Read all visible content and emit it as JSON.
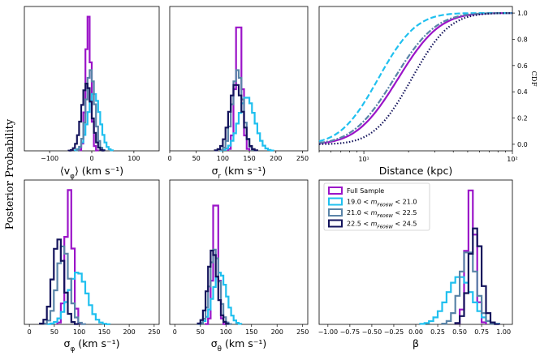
{
  "figure": {
    "y_label": "Posterior Probability",
    "colors": {
      "full": "#9b14c8",
      "s1": "#20c0ef",
      "s2": "#5a84a8",
      "s3": "#14145c"
    }
  },
  "legend": {
    "entries": [
      {
        "key": "full",
        "label": "Full Sample"
      },
      {
        "key": "s1",
        "label": "19.0 < m_F606W < 21.0"
      },
      {
        "key": "s2",
        "label": "21.0 < m_F606W < 22.5"
      },
      {
        "key": "s3",
        "label": "22.5 < m_F606W < 24.5"
      }
    ]
  },
  "chart_data": [
    {
      "id": "vphi",
      "type": "histogram",
      "xlabel": "⟨v_φ⟩ (km s⁻¹)",
      "xlim": [
        -160,
        160
      ],
      "xticks": [
        -100,
        0,
        100
      ],
      "xticklabels": [
        "−100",
        "0",
        "100"
      ],
      "bin_width": 5,
      "series": [
        {
          "key": "full",
          "center": -8,
          "sd": 6
        },
        {
          "key": "s1",
          "center": 5,
          "sd": 14
        },
        {
          "key": "s2",
          "center": -3,
          "sd": 10
        },
        {
          "key": "s3",
          "center": -12,
          "sd": 12
        }
      ]
    },
    {
      "id": "sigr",
      "type": "histogram",
      "xlabel": "σ_r (km s⁻¹)",
      "xlim": [
        0,
        260
      ],
      "xticks": [
        0,
        50,
        100,
        150,
        200,
        250
      ],
      "xticklabels": [
        "0",
        "50",
        "100",
        "150",
        "200",
        "250"
      ],
      "bin_width": 5,
      "series": [
        {
          "key": "full",
          "center": 130,
          "sd": 6
        },
        {
          "key": "s1",
          "center": 145,
          "sd": 15
        },
        {
          "key": "s2",
          "center": 128,
          "sd": 10
        },
        {
          "key": "s3",
          "center": 125,
          "sd": 12
        }
      ]
    },
    {
      "id": "sigphi",
      "type": "histogram",
      "xlabel": "σ_φ (km s⁻¹)",
      "xlim": [
        -10,
        260
      ],
      "xticks": [
        0,
        50,
        100,
        150,
        200,
        250
      ],
      "xticklabels": [
        "0",
        "50",
        "100",
        "150",
        "200",
        "250"
      ],
      "bin_width": 7,
      "series": [
        {
          "key": "full",
          "center": 80,
          "sd": 7
        },
        {
          "key": "s1",
          "center": 97,
          "sd": 18
        },
        {
          "key": "s2",
          "center": 68,
          "sd": 12
        },
        {
          "key": "s3",
          "center": 58,
          "sd": 11
        }
      ]
    },
    {
      "id": "sigtheta",
      "type": "histogram",
      "xlabel": "σ_θ (km s⁻¹)",
      "xlim": [
        -10,
        260
      ],
      "xticks": [
        0,
        50,
        100,
        150,
        200,
        250
      ],
      "xticklabels": [
        "0",
        "50",
        "100",
        "150",
        "200",
        "250"
      ],
      "bin_width": 5,
      "series": [
        {
          "key": "full",
          "center": 80,
          "sd": 5
        },
        {
          "key": "s1",
          "center": 88,
          "sd": 13
        },
        {
          "key": "s2",
          "center": 78,
          "sd": 9
        },
        {
          "key": "s3",
          "center": 74,
          "sd": 9
        }
      ]
    },
    {
      "id": "beta",
      "type": "histogram",
      "xlabel": "β",
      "xlim": [
        -1.1,
        1.1
      ],
      "xticks": [
        -1.0,
        -0.75,
        -0.5,
        -0.25,
        0.0,
        0.25,
        0.5,
        0.75,
        1.0
      ],
      "xticklabels": [
        "−1.00",
        "−0.75",
        "−0.50",
        "−0.25",
        "0.00",
        "0.25",
        "0.50",
        "0.75",
        "1.00"
      ],
      "bin_width": 0.05,
      "series": [
        {
          "key": "full",
          "center": 0.63,
          "sd": 0.05
        },
        {
          "key": "s1",
          "center": 0.5,
          "sd": 0.14
        },
        {
          "key": "s2",
          "center": 0.6,
          "sd": 0.09
        },
        {
          "key": "s3",
          "center": 0.68,
          "sd": 0.07
        }
      ]
    },
    {
      "id": "cdf",
      "type": "line",
      "xlabel": "Distance (kpc)",
      "ylabel": "CDF",
      "xscale": "log",
      "xlim": [
        5,
        100
      ],
      "ylim": [
        -0.05,
        1.05
      ],
      "xticklabels": [
        "10¹",
        "10²"
      ],
      "yticks": [
        0.0,
        0.2,
        0.4,
        0.6,
        0.8,
        1.0
      ],
      "yticklabels": [
        "0.0",
        "0.2",
        "0.4",
        "0.6",
        "0.8",
        "1.0"
      ],
      "series": [
        {
          "key": "full",
          "style": "solid",
          "median": 17,
          "log_sd": 0.22
        },
        {
          "key": "s1",
          "style": "dashed",
          "median": 12.5,
          "log_sd": 0.2
        },
        {
          "key": "s2",
          "style": "dashdot",
          "median": 16,
          "log_sd": 0.22
        },
        {
          "key": "s3",
          "style": "dotted",
          "median": 21,
          "log_sd": 0.2
        }
      ]
    }
  ]
}
